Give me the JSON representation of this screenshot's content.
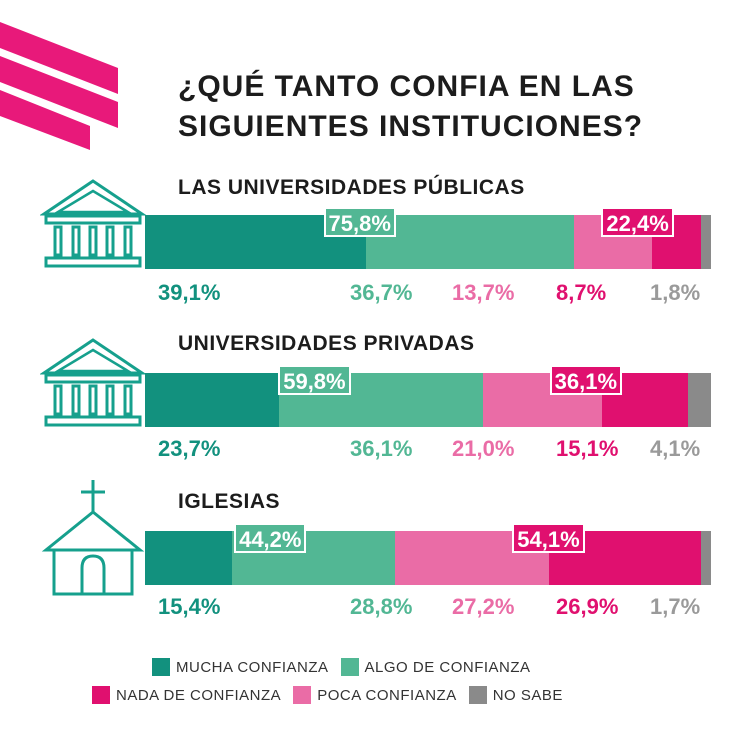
{
  "chart_data": {
    "type": "bar",
    "orientation": "horizontal",
    "stacked": true,
    "title": "¿QUÉ TANTO CONFIA EN LAS SIGUIENTES INSTITUCIONES?",
    "title_lines": [
      "¿QUÉ TANTO CONFIA EN LAS",
      "SIGUIENTES INSTITUCIONES?"
    ],
    "series_order": [
      "MUCHA CONFIANZA",
      "ALGO DE CONFIANZA",
      "POCA CONFIANZA",
      "NADA DE CONFIANZA",
      "NO SABE"
    ],
    "colors": {
      "MUCHA CONFIANZA": "#12917e",
      "ALGO DE CONFIANZA": "#52b794",
      "POCA CONFIANZA": "#ea6ca6",
      "NADA DE CONFIANZA": "#e0106f",
      "NO SABE": "#8a8a8a"
    },
    "panels": [
      {
        "title": "LAS UNIVERSIDADES PÚBLICAS",
        "icon": "university-building-icon",
        "values": [
          39.1,
          36.7,
          13.7,
          8.7,
          1.8
        ],
        "labels": [
          "39,1%",
          "36,7%",
          "13,7%",
          "8,7%",
          "1,8%"
        ],
        "positive_total": "75,8%",
        "negative_total": "22,4%"
      },
      {
        "title": "UNIVERSIDADES PRIVADAS",
        "icon": "university-building-icon",
        "values": [
          23.7,
          36.1,
          21.0,
          15.1,
          4.1
        ],
        "labels": [
          "23,7%",
          "36,1%",
          "21,0%",
          "15,1%",
          "4,1%"
        ],
        "positive_total": "59,8%",
        "negative_total": "36,1%"
      },
      {
        "title": "IGLESIAS",
        "icon": "church-icon",
        "values": [
          15.4,
          28.8,
          27.2,
          26.9,
          1.7
        ],
        "labels": [
          "15,4%",
          "28,8%",
          "27,2%",
          "26,9%",
          "1,7%"
        ],
        "positive_total": "44,2%",
        "negative_total": "54,1%"
      }
    ],
    "legend": [
      [
        "MUCHA CONFIANZA",
        "ALGO DE CONFIANZA"
      ],
      [
        "NADA DE CONFIANZA",
        "POCA CONFIANZA",
        "NO SABE"
      ]
    ]
  },
  "brand": {
    "logo_icon": "brand-stripes-logo",
    "color": "#e0106f"
  },
  "icon_color": "#16a08d"
}
